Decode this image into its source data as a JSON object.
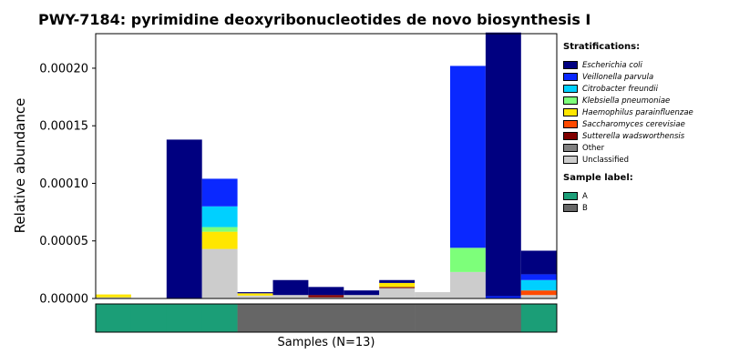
{
  "title": "PWY-7184: pyrimidine deoxyribonucleotides de novo biosynthesis I",
  "ylabel": "Relative abundance",
  "xlabel": "Samples (N=13)",
  "legend": {
    "stratifications_title": "Stratifications:",
    "sample_label_title": "Sample label:"
  },
  "chart_data": {
    "type": "bar",
    "stacked": true,
    "title": "PWY-7184: pyrimidine deoxyribonucleotides de novo biosynthesis I",
    "xlabel": "Samples (N=13)",
    "ylabel": "Relative abundance",
    "ylim": [
      0,
      0.00023
    ],
    "yticks": [
      "0.00000",
      "0.00005",
      "0.00010",
      "0.00015",
      "0.00020"
    ],
    "ytick_values": [
      0,
      5e-05,
      0.0001,
      0.00015,
      0.0002
    ],
    "grid": false,
    "legend_position": "right",
    "n_samples": 13,
    "series": [
      {
        "name": "Escherichia coli",
        "italic": true,
        "color": "#000080",
        "values": [
          0,
          0,
          0.000138,
          0,
          1e-06,
          1.3e-05,
          7e-06,
          4e-06,
          2.5e-06,
          0,
          0,
          0.000229,
          2.05e-05
        ]
      },
      {
        "name": "Veillonella parvula",
        "italic": true,
        "color": "#0a28ff",
        "values": [
          0,
          0,
          0,
          2.4e-05,
          0,
          0,
          0,
          0,
          0,
          0,
          0.000158,
          2e-06,
          5e-06
        ]
      },
      {
        "name": "Citrobacter freundii",
        "italic": true,
        "color": "#00d0ff",
        "values": [
          0,
          0,
          0,
          1.8e-05,
          0,
          0,
          0,
          0,
          0,
          0,
          0,
          0,
          9e-06
        ]
      },
      {
        "name": "Klebsiella pneumoniae",
        "italic": true,
        "color": "#7dff7a",
        "values": [
          0,
          0,
          0,
          4e-06,
          0,
          0,
          0,
          0,
          0,
          0,
          2.1e-05,
          0,
          0
        ]
      },
      {
        "name": "Haemophilus parainfluenzae",
        "italic": true,
        "color": "#ffe600",
        "values": [
          2.5e-06,
          0,
          0,
          1.5e-05,
          2e-06,
          0,
          0,
          0,
          3.5e-06,
          0,
          0,
          0,
          0
        ]
      },
      {
        "name": "Saccharomyces cerevisiae",
        "italic": true,
        "color": "#ff4a00",
        "values": [
          0,
          0,
          0,
          0,
          0,
          0,
          0,
          0,
          0,
          0,
          0,
          0,
          4e-06
        ]
      },
      {
        "name": "Sutterella wadsworthensis",
        "italic": true,
        "color": "#800000",
        "values": [
          0,
          0,
          0,
          0,
          0,
          0,
          2e-06,
          0,
          1e-06,
          0,
          0,
          0,
          0
        ]
      },
      {
        "name": "Other",
        "italic": false,
        "color": "#808080",
        "values": [
          0,
          0,
          0,
          0,
          0,
          0,
          0,
          0,
          0,
          0,
          0,
          0,
          0
        ]
      },
      {
        "name": "Unclassified",
        "italic": false,
        "color": "#cccccc",
        "values": [
          1e-06,
          0,
          0,
          4.3e-05,
          2.5e-06,
          3e-06,
          1e-06,
          3e-06,
          9e-06,
          5.5e-06,
          2.3e-05,
          0,
          3e-06
        ]
      }
    ],
    "sample_labels": {
      "title": "Sample label:",
      "values": [
        "A",
        "A",
        "A",
        "A",
        "B",
        "B",
        "B",
        "B",
        "B",
        "B",
        "B",
        "B",
        "A"
      ],
      "legend": [
        {
          "name": "A",
          "color": "#1b9e77"
        },
        {
          "name": "B",
          "color": "#666666"
        }
      ]
    }
  }
}
